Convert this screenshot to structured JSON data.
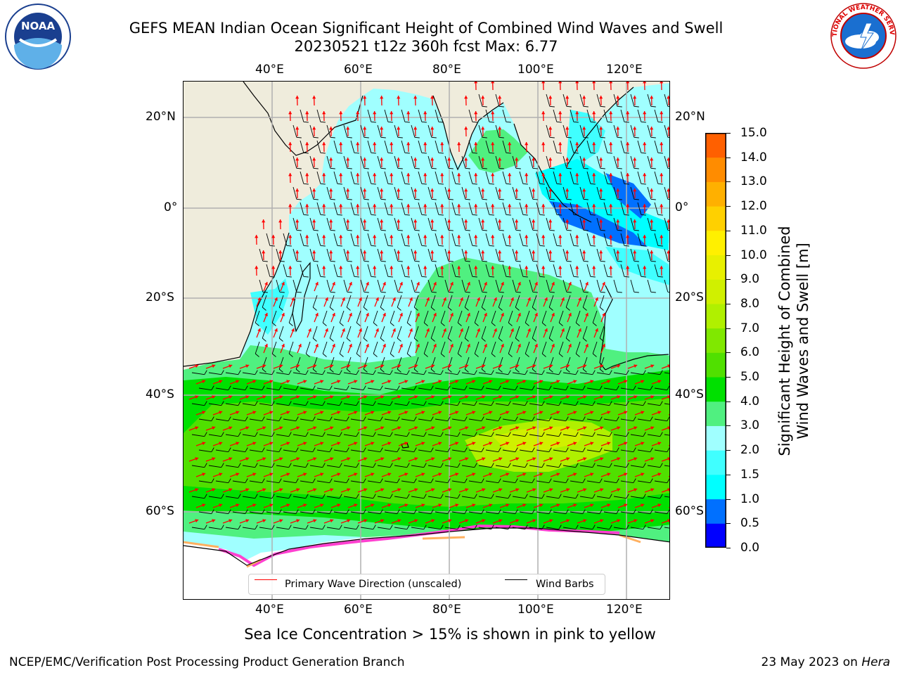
{
  "title": {
    "line1": "GEFS MEAN Indian Ocean Significant Height of Combined Wind Waves and Swell",
    "line2": "20230521 t12z 360h fcst   Max: 6.77"
  },
  "map": {
    "lon_ticks": [
      "40°E",
      "60°E",
      "80°E",
      "100°E",
      "120°E"
    ],
    "lat_ticks": [
      "20°N",
      "0°",
      "20°S",
      "40°S",
      "60°S"
    ],
    "lon_range": [
      20,
      130
    ],
    "lat_range": [
      -72,
      28
    ]
  },
  "colorbar": {
    "title_line1": "Significant Height of Combined",
    "title_line2": "Wind Waves and Swell [m]",
    "labels": [
      "15.0",
      "14.0",
      "13.0",
      "12.0",
      "11.0",
      "10.0",
      "9.0",
      "8.0",
      "7.0",
      "6.0",
      "5.0",
      "4.0",
      "3.0",
      "2.0",
      "1.5",
      "1.0",
      "0.5",
      "0.0"
    ],
    "colors": [
      "#0000ff",
      "#0070ff",
      "#00ffff",
      "#40ffff",
      "#a0ffff",
      "#50f080",
      "#00e000",
      "#50e000",
      "#80e800",
      "#b0f000",
      "#d0f000",
      "#e8f000",
      "#fff000",
      "#ffd000",
      "#ffb000",
      "#ff8c00",
      "#ff6000",
      "#ff3000",
      "#ff0000"
    ]
  },
  "legend": {
    "wave_label": "Primary Wave Direction (unscaled)",
    "wave_color": "#ff0000",
    "barb_label": "Wind Barbs",
    "barb_color": "#000000"
  },
  "footnote": "Sea Ice Concentration > 15% is shown in pink to yellow",
  "footer": {
    "left": "NCEP/EMC/Verification Post Processing Product Generation Branch",
    "right_date": "23 May 2023 on ",
    "right_host": "Hera"
  },
  "logos": {
    "noaa_text": "NOAA",
    "nws_text": "NATIONAL WEATHER SERVICE"
  }
}
